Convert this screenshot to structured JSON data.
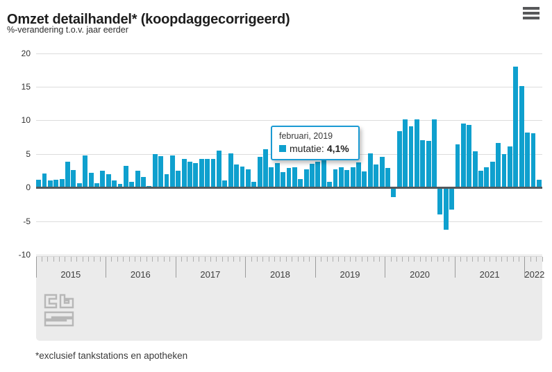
{
  "header": {
    "title": "Omzet detailhandel* (koopdaggecorrigeerd)",
    "subtitle": "%-verandering t.o.v. jaar eerder"
  },
  "tooltip": {
    "date_label": "februari, 2019",
    "series_label": "mutatie:",
    "value": "4,1%"
  },
  "footnote": "*exclusief tankstations en apotheken",
  "colors": {
    "bar": "#0fa0ce",
    "tooltip_border": "#1a9ad3",
    "zero_line": "#55585b",
    "grid_line": "#dcdcdc",
    "axis_band_bg": "#ebebeb",
    "logo_gray": "#b7b7b7"
  },
  "chart_data": {
    "type": "bar",
    "title": "Omzet detailhandel* (koopdaggecorrigeerd)",
    "ylabel": "%-verandering t.o.v. jaar eerder",
    "xlabel": "",
    "ylim": [
      -10,
      20
    ],
    "y_ticks": [
      20,
      15,
      10,
      5,
      0,
      -5,
      -10
    ],
    "grid": true,
    "legend_position": "none",
    "frequency": "monthly",
    "start_month": "januari 2015",
    "end_month": "maart 2022",
    "x_year_labels": [
      "2015",
      "2016",
      "2017",
      "2018",
      "2019",
      "2020",
      "2021",
      "2022"
    ],
    "series": [
      {
        "name": "mutatie",
        "values": [
          1.2,
          2.1,
          1.1,
          1.2,
          1.3,
          3.8,
          2.6,
          0.7,
          4.8,
          2.2,
          0.6,
          2.5,
          2.0,
          1.1,
          0.5,
          3.2,
          0.9,
          2.5,
          1.6,
          0.2,
          5.0,
          4.7,
          2.0,
          4.8,
          2.5,
          4.3,
          3.8,
          3.6,
          4.3,
          4.3,
          4.3,
          5.5,
          1.1,
          5.1,
          3.4,
          3.1,
          2.7,
          0.9,
          4.6,
          5.7,
          3.0,
          3.6,
          2.3,
          2.9,
          3.0,
          1.3,
          2.7,
          3.5,
          3.8,
          4.1,
          0.9,
          2.7,
          3.0,
          2.6,
          3.0,
          3.7,
          2.4,
          5.1,
          3.4,
          4.6,
          2.9,
          -1.3,
          8.4,
          10.1,
          9.1,
          10.2,
          7.1,
          7.0,
          10.1,
          -3.8,
          -6.1,
          -3.1,
          6.4,
          9.5,
          9.3,
          5.4,
          2.5,
          3.0,
          3.9,
          6.6,
          5.0,
          6.1,
          18.0,
          15.1,
          8.2,
          8.1,
          1.2
        ]
      }
    ],
    "highlighted_point": {
      "month": "februari, 2019",
      "value": 4.1,
      "display": "4,1%"
    }
  }
}
